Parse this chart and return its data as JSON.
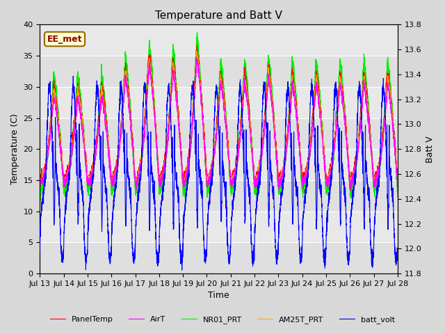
{
  "title": "Temperature and Batt V",
  "xlabel": "Time",
  "ylabel_left": "Temperature (C)",
  "ylabel_right": "Batt V",
  "annotation": "EE_met",
  "ylim_left": [
    0,
    40
  ],
  "ylim_right": [
    11.8,
    13.8
  ],
  "xtick_labels": [
    "Jul 13",
    "Jul 14",
    "Jul 15",
    "Jul 16",
    "Jul 17",
    "Jul 18",
    "Jul 19",
    "Jul 20",
    "Jul 21",
    "Jul 22",
    "Jul 23",
    "Jul 24",
    "Jul 25",
    "Jul 26",
    "Jul 27",
    "Jul 28"
  ],
  "yticks_left": [
    0,
    5,
    10,
    15,
    20,
    25,
    30,
    35,
    40
  ],
  "yticks_right": [
    11.8,
    12.0,
    12.2,
    12.4,
    12.6,
    12.8,
    13.0,
    13.2,
    13.4,
    13.6,
    13.8
  ],
  "colors": {
    "PanelTemp": "#ff0000",
    "AirT": "#ff00ff",
    "NR01_PRT": "#00ee00",
    "AM25T_PRT": "#ffaa00",
    "batt_volt": "#0000ff"
  },
  "line_width": 0.8,
  "fig_bg": "#d8d8d8",
  "plot_bg": "#e8e8e8",
  "grid_color": "#ffffff",
  "annotation_fg": "#8b0000",
  "annotation_bg": "#ffffcc",
  "annotation_edge": "#996600"
}
